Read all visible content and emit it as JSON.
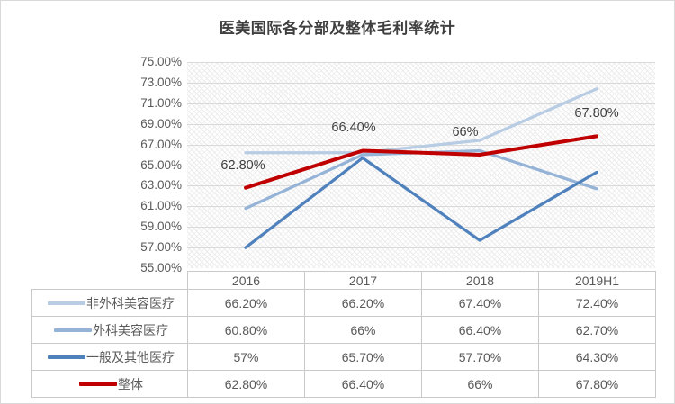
{
  "title": "医美国际各分部及整体毛利率统计",
  "chart_data": {
    "type": "line",
    "title": "医美国际各分部及整体毛利率统计",
    "xlabel": "",
    "ylabel": "",
    "categories": [
      "2016",
      "2017",
      "2018",
      "2019H1"
    ],
    "series": [
      {
        "name": "非外科美容医疗",
        "values": [
          66.2,
          66.2,
          67.4,
          72.4
        ],
        "display_values": [
          "66.20%",
          "66.20%",
          "67.40%",
          "72.40%"
        ],
        "color": "#b8cce4"
      },
      {
        "name": "外科美容医疗",
        "values": [
          60.8,
          66.0,
          66.4,
          62.7
        ],
        "display_values": [
          "60.80%",
          "66%",
          "66.40%",
          "62.70%"
        ],
        "color": "#95b3d7"
      },
      {
        "name": "一般及其他医疗",
        "values": [
          57.0,
          65.7,
          57.7,
          64.3
        ],
        "display_values": [
          "57%",
          "65.70%",
          "57.70%",
          "64.30%"
        ],
        "color": "#4f81bd"
      },
      {
        "name": "整体",
        "values": [
          62.8,
          66.4,
          66.0,
          67.8
        ],
        "display_values": [
          "62.80%",
          "66.40%",
          "66%",
          "67.80%"
        ],
        "color": "#c00000",
        "data_labels": [
          "62.80%",
          "66.40%",
          "66%",
          "67.80%"
        ]
      }
    ],
    "ylim": [
      55,
      75
    ],
    "ytick_step": 2,
    "ytick_labels": [
      "75.00%",
      "73.00%",
      "71.00%",
      "69.00%",
      "67.00%",
      "65.00%",
      "63.00%",
      "61.00%",
      "59.00%",
      "57.00%",
      "55.00%"
    ],
    "grid": true,
    "plot_background": "light-diagonal-hatch",
    "gridline_color": "#d9d9d9",
    "legend_position": "data-table-left"
  }
}
